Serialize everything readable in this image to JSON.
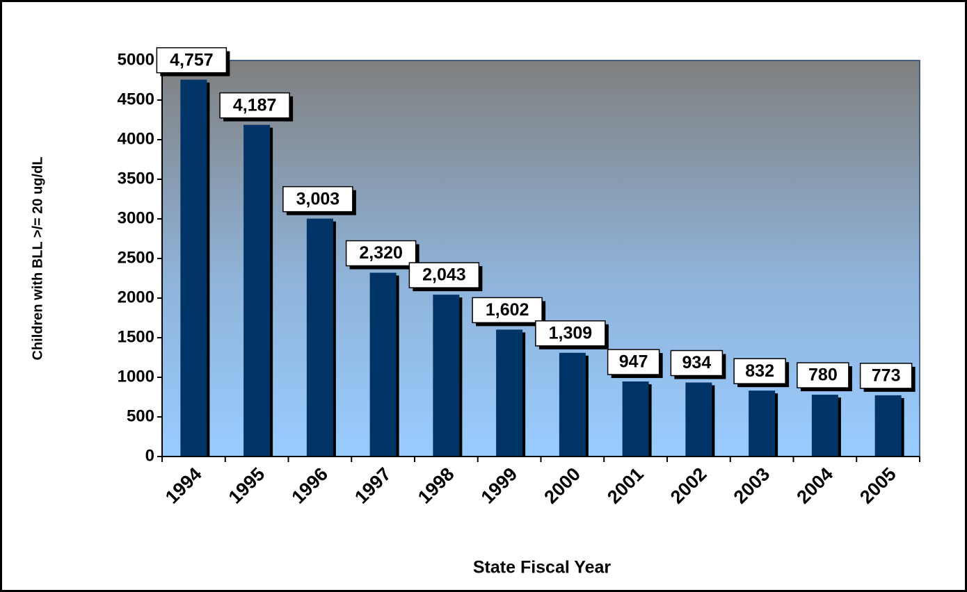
{
  "chart_data": {
    "type": "bar",
    "categories": [
      "1994",
      "1995",
      "1996",
      "1997",
      "1998",
      "1999",
      "2000",
      "2001",
      "2002",
      "2003",
      "2004",
      "2005"
    ],
    "values": [
      4757,
      4187,
      3003,
      2320,
      2043,
      1602,
      1309,
      947,
      934,
      832,
      780,
      773
    ],
    "value_labels": [
      "4,757",
      "4,187",
      "3,003",
      "2,320",
      "2,043",
      "1,602",
      "1,309",
      "947",
      "934",
      "832",
      "780",
      "773"
    ],
    "color": "#003366",
    "ylim": [
      0,
      5000
    ],
    "yticks": [
      0,
      500,
      1000,
      1500,
      2000,
      2500,
      3000,
      3500,
      4000,
      4500,
      5000
    ],
    "grid": false,
    "ylabel": "Children with BLL >/= 20 ug/dL",
    "xlabel": "State Fiscal Year"
  }
}
